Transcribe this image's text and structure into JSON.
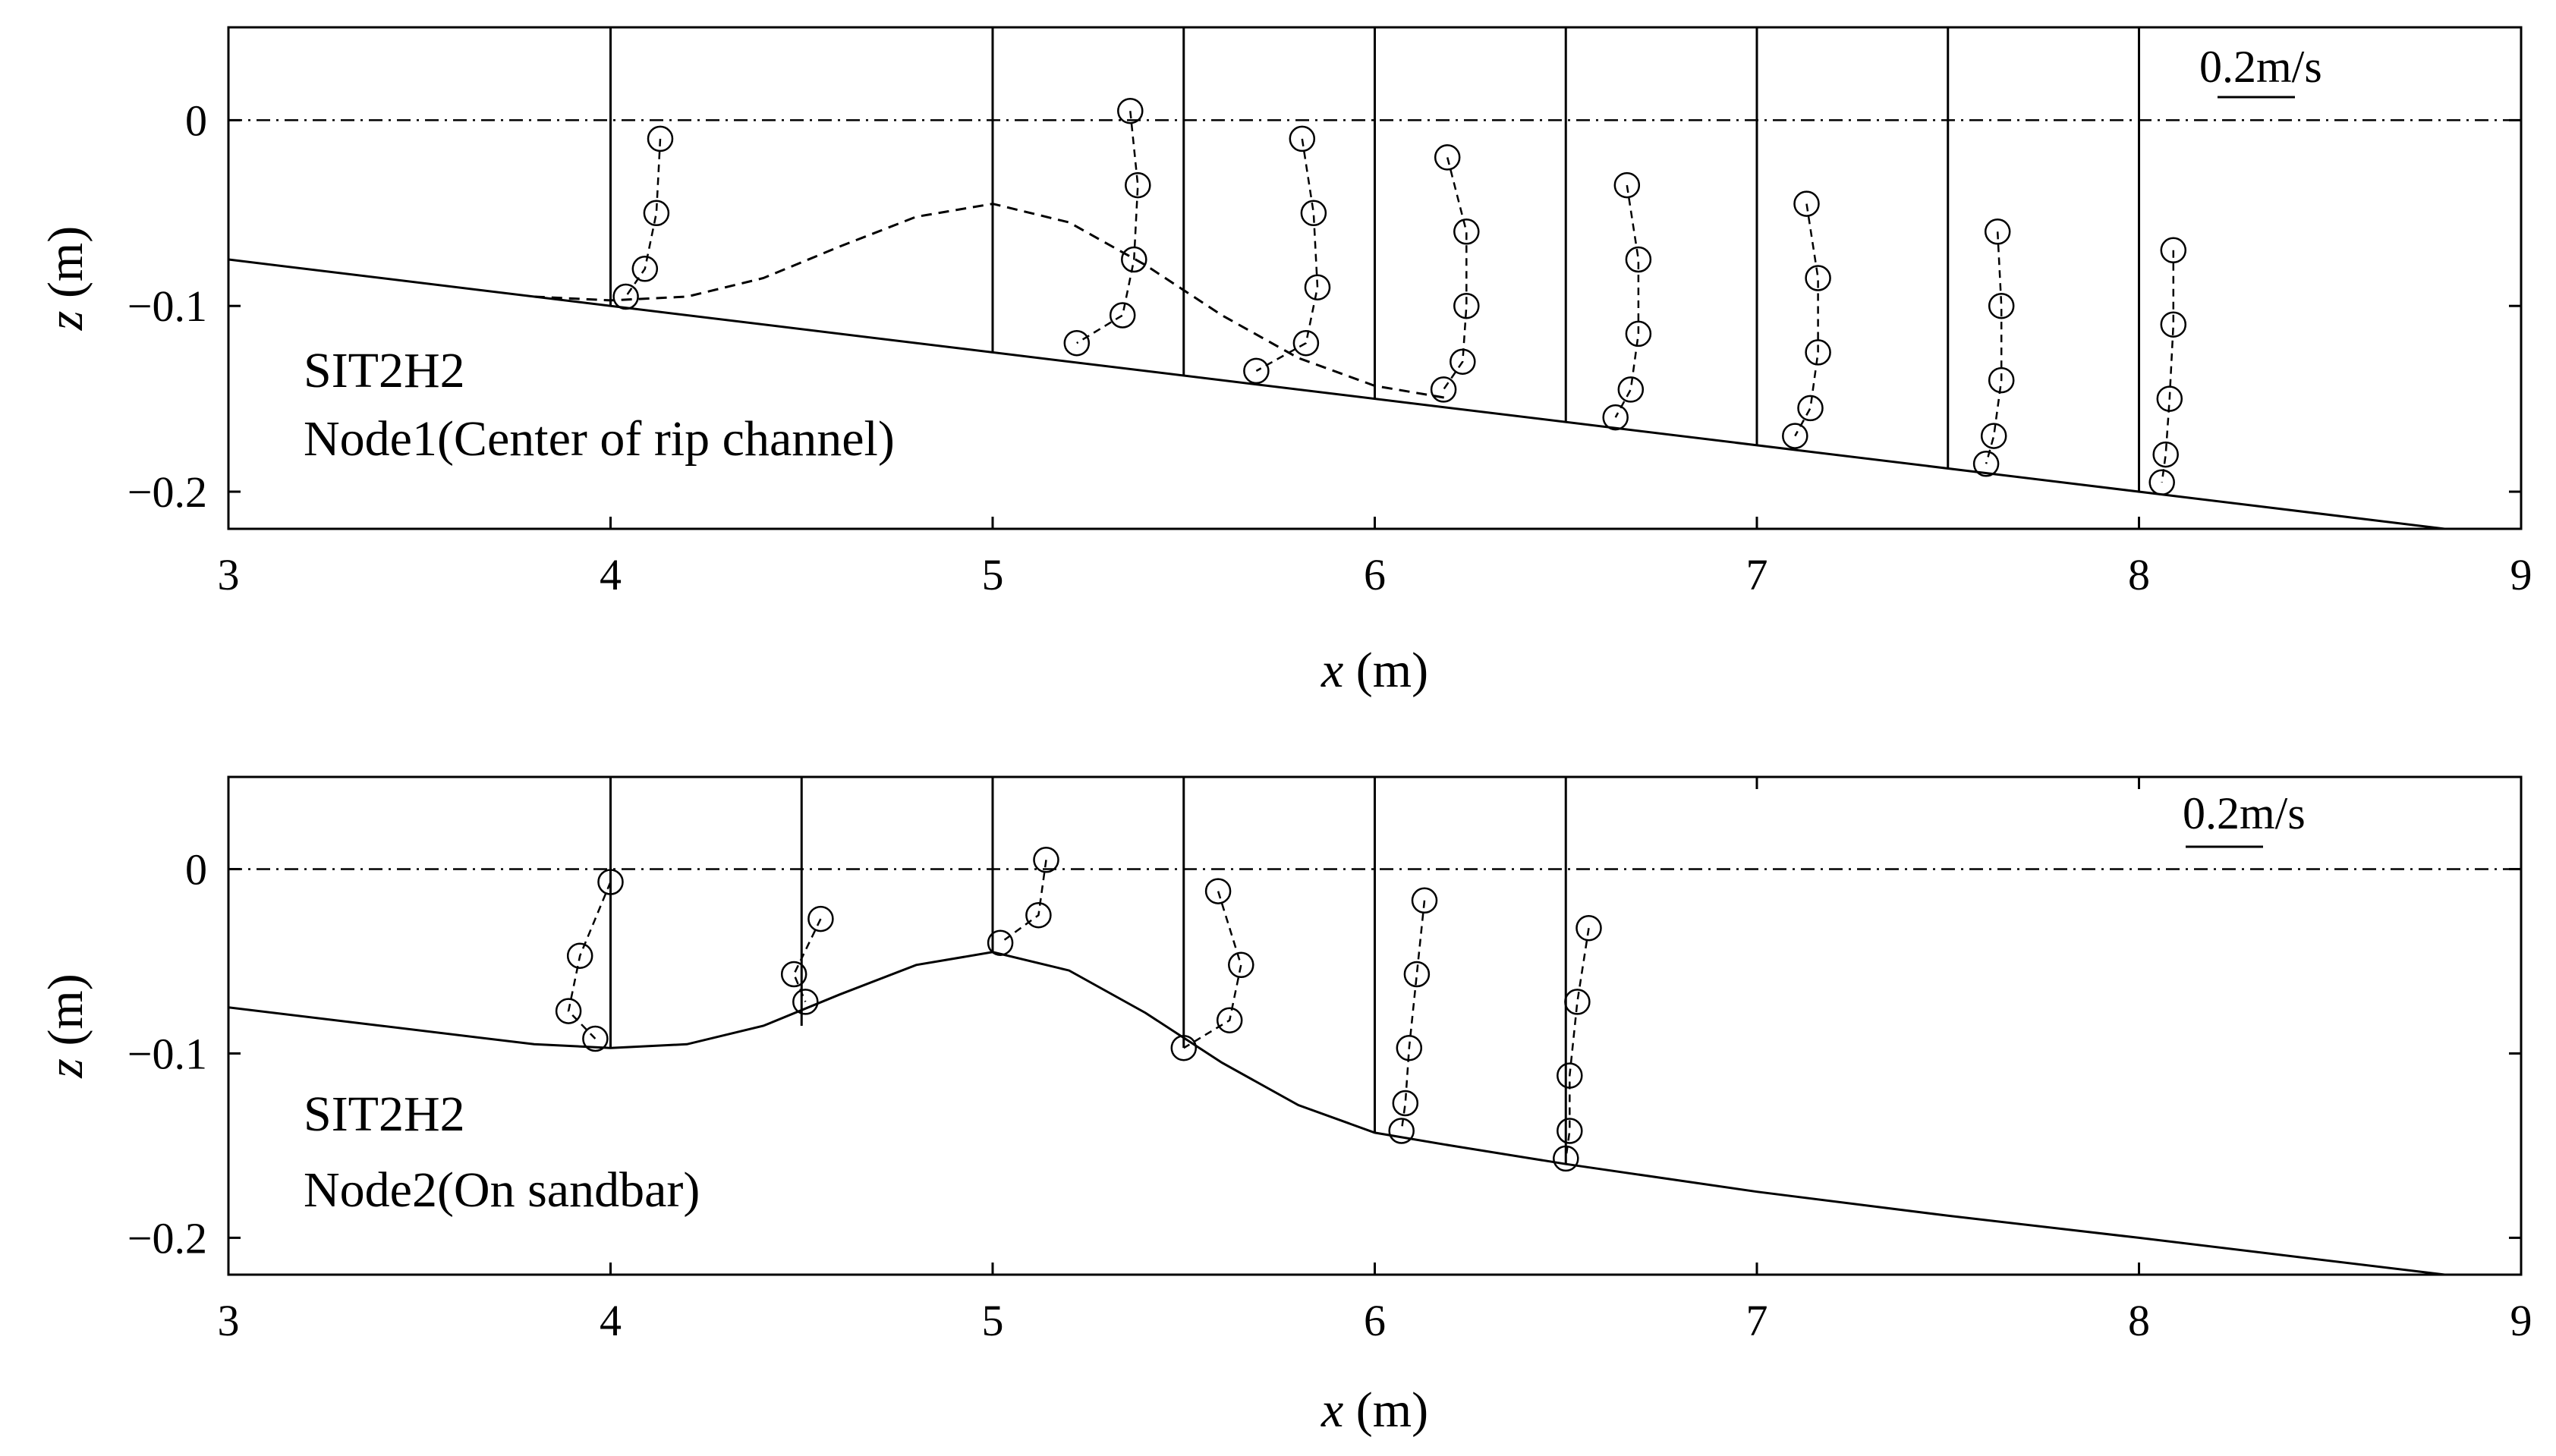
{
  "chart_data": [
    {
      "type": "line",
      "xlabel_var": "x",
      "xlabel_unit": "(m)",
      "ylabel_var": "z",
      "ylabel_unit": "(m)",
      "xlim": [
        3,
        9
      ],
      "ylim": [
        -0.22,
        0.05
      ],
      "xticks": [
        "3",
        "4",
        "5",
        "6",
        "7",
        "8",
        "9"
      ],
      "yticks": [
        {
          "value": 0,
          "label": "0"
        },
        {
          "value": -0.1,
          "label": "−0.1"
        },
        {
          "value": -0.2,
          "label": "−0.2"
        }
      ],
      "annotations": [
        "SIT2H2",
        "Node1(Center of rip channel)"
      ],
      "scale_bar_label": "0.2m/s",
      "scale_bar_value": 0.2,
      "still_water_level": 0,
      "bed_profile": {
        "x": [
          3,
          8.8
        ],
        "z": [
          -0.075,
          -0.22
        ]
      },
      "sandbar_profile": {
        "x": [
          3.8,
          4.0,
          4.2,
          4.4,
          4.6,
          4.8,
          5.0,
          5.2,
          5.4,
          5.6,
          5.8,
          6.0,
          6.2
        ],
        "z": [
          -0.095,
          -0.097,
          -0.095,
          -0.085,
          -0.068,
          -0.052,
          -0.045,
          -0.055,
          -0.078,
          -0.105,
          -0.128,
          -0.143,
          -0.15
        ]
      },
      "profiles": [
        {
          "x0": 4.0,
          "bed": -0.1,
          "points": [
            {
              "x": 4.13,
              "z": -0.01
            },
            {
              "x": 4.12,
              "z": -0.05
            },
            {
              "x": 4.09,
              "z": -0.08
            },
            {
              "x": 4.04,
              "z": -0.095
            }
          ]
        },
        {
          "x0": 5.0,
          "bed": -0.125,
          "points": [
            {
              "x": 5.36,
              "z": 0.005
            },
            {
              "x": 5.38,
              "z": -0.035
            },
            {
              "x": 5.37,
              "z": -0.075
            },
            {
              "x": 5.34,
              "z": -0.105
            },
            {
              "x": 5.22,
              "z": -0.12
            }
          ]
        },
        {
          "x0": 5.5,
          "bed": -0.1375,
          "points": [
            {
              "x": 5.81,
              "z": -0.01
            },
            {
              "x": 5.84,
              "z": -0.05
            },
            {
              "x": 5.85,
              "z": -0.09
            },
            {
              "x": 5.82,
              "z": -0.12
            },
            {
              "x": 5.69,
              "z": -0.135
            }
          ]
        },
        {
          "x0": 6.0,
          "bed": -0.15,
          "points": [
            {
              "x": 6.19,
              "z": -0.02
            },
            {
              "x": 6.24,
              "z": -0.06
            },
            {
              "x": 6.24,
              "z": -0.1
            },
            {
              "x": 6.23,
              "z": -0.13
            },
            {
              "x": 6.18,
              "z": -0.145
            }
          ]
        },
        {
          "x0": 6.5,
          "bed": -0.1625,
          "points": [
            {
              "x": 6.66,
              "z": -0.035
            },
            {
              "x": 6.69,
              "z": -0.075
            },
            {
              "x": 6.69,
              "z": -0.115
            },
            {
              "x": 6.67,
              "z": -0.145
            },
            {
              "x": 6.63,
              "z": -0.16
            }
          ]
        },
        {
          "x0": 7.0,
          "bed": -0.175,
          "points": [
            {
              "x": 7.13,
              "z": -0.045
            },
            {
              "x": 7.16,
              "z": -0.085
            },
            {
              "x": 7.16,
              "z": -0.125
            },
            {
              "x": 7.14,
              "z": -0.155
            },
            {
              "x": 7.1,
              "z": -0.17
            }
          ]
        },
        {
          "x0": 7.5,
          "bed": -0.1875,
          "points": [
            {
              "x": 7.63,
              "z": -0.06
            },
            {
              "x": 7.64,
              "z": -0.1
            },
            {
              "x": 7.64,
              "z": -0.14
            },
            {
              "x": 7.62,
              "z": -0.17
            },
            {
              "x": 7.6,
              "z": -0.185
            }
          ]
        },
        {
          "x0": 8.0,
          "bed": -0.2,
          "points": [
            {
              "x": 8.09,
              "z": -0.07
            },
            {
              "x": 8.09,
              "z": -0.11
            },
            {
              "x": 8.08,
              "z": -0.15
            },
            {
              "x": 8.07,
              "z": -0.18
            },
            {
              "x": 8.06,
              "z": -0.195
            }
          ]
        }
      ]
    },
    {
      "type": "line",
      "xlabel_var": "x",
      "xlabel_unit": "(m)",
      "ylabel_var": "z",
      "ylabel_unit": "(m)",
      "xlim": [
        3,
        9
      ],
      "ylim": [
        -0.22,
        0.05
      ],
      "xticks": [
        "3",
        "4",
        "5",
        "6",
        "7",
        "8",
        "9"
      ],
      "yticks": [
        {
          "value": 0,
          "label": "0"
        },
        {
          "value": -0.1,
          "label": "−0.1"
        },
        {
          "value": -0.2,
          "label": "−0.2"
        }
      ],
      "annotations": [
        "SIT2H2",
        "Node2(On sandbar)"
      ],
      "scale_bar_label": "0.2m/s",
      "scale_bar_value": 0.2,
      "still_water_level": 0,
      "bed_profile": {
        "x": [
          3.0,
          3.4,
          3.8,
          4.0,
          4.2,
          4.4,
          4.6,
          4.8,
          5.0,
          5.2,
          5.4,
          5.6,
          5.8,
          6.0,
          6.2,
          6.5,
          7.0,
          7.5,
          8.0,
          8.8
        ],
        "z": [
          -0.075,
          -0.085,
          -0.095,
          -0.097,
          -0.095,
          -0.085,
          -0.068,
          -0.052,
          -0.045,
          -0.055,
          -0.078,
          -0.105,
          -0.128,
          -0.143,
          -0.15,
          -0.16,
          -0.175,
          -0.188,
          -0.2,
          -0.22
        ]
      },
      "profiles": [
        {
          "x0": 4.0,
          "bed": -0.097,
          "points": [
            {
              "x": 4.0,
              "z": -0.007
            },
            {
              "x": 3.92,
              "z": -0.047
            },
            {
              "x": 3.89,
              "z": -0.077
            },
            {
              "x": 3.96,
              "z": -0.092
            }
          ]
        },
        {
          "x0": 4.5,
          "bed": -0.085,
          "points": [
            {
              "x": 4.55,
              "z": -0.027
            },
            {
              "x": 4.48,
              "z": -0.057
            },
            {
              "x": 4.51,
              "z": -0.072
            }
          ]
        },
        {
          "x0": 5.0,
          "bed": -0.045,
          "points": [
            {
              "x": 5.14,
              "z": 0.005
            },
            {
              "x": 5.12,
              "z": -0.025
            },
            {
              "x": 5.02,
              "z": -0.04
            }
          ]
        },
        {
          "x0": 5.5,
          "bed": -0.097,
          "points": [
            {
              "x": 5.59,
              "z": -0.012
            },
            {
              "x": 5.65,
              "z": -0.052
            },
            {
              "x": 5.62,
              "z": -0.082
            },
            {
              "x": 5.5,
              "z": -0.097
            }
          ]
        },
        {
          "x0": 6.0,
          "bed": -0.143,
          "points": [
            {
              "x": 6.13,
              "z": -0.017
            },
            {
              "x": 6.11,
              "z": -0.057
            },
            {
              "x": 6.09,
              "z": -0.097
            },
            {
              "x": 6.08,
              "z": -0.127
            },
            {
              "x": 6.07,
              "z": -0.142
            }
          ]
        },
        {
          "x0": 6.5,
          "bed": -0.16,
          "points": [
            {
              "x": 6.56,
              "z": -0.032
            },
            {
              "x": 6.53,
              "z": -0.072
            },
            {
              "x": 6.51,
              "z": -0.112
            },
            {
              "x": 6.51,
              "z": -0.142
            },
            {
              "x": 6.5,
              "z": -0.157
            }
          ]
        }
      ]
    }
  ]
}
